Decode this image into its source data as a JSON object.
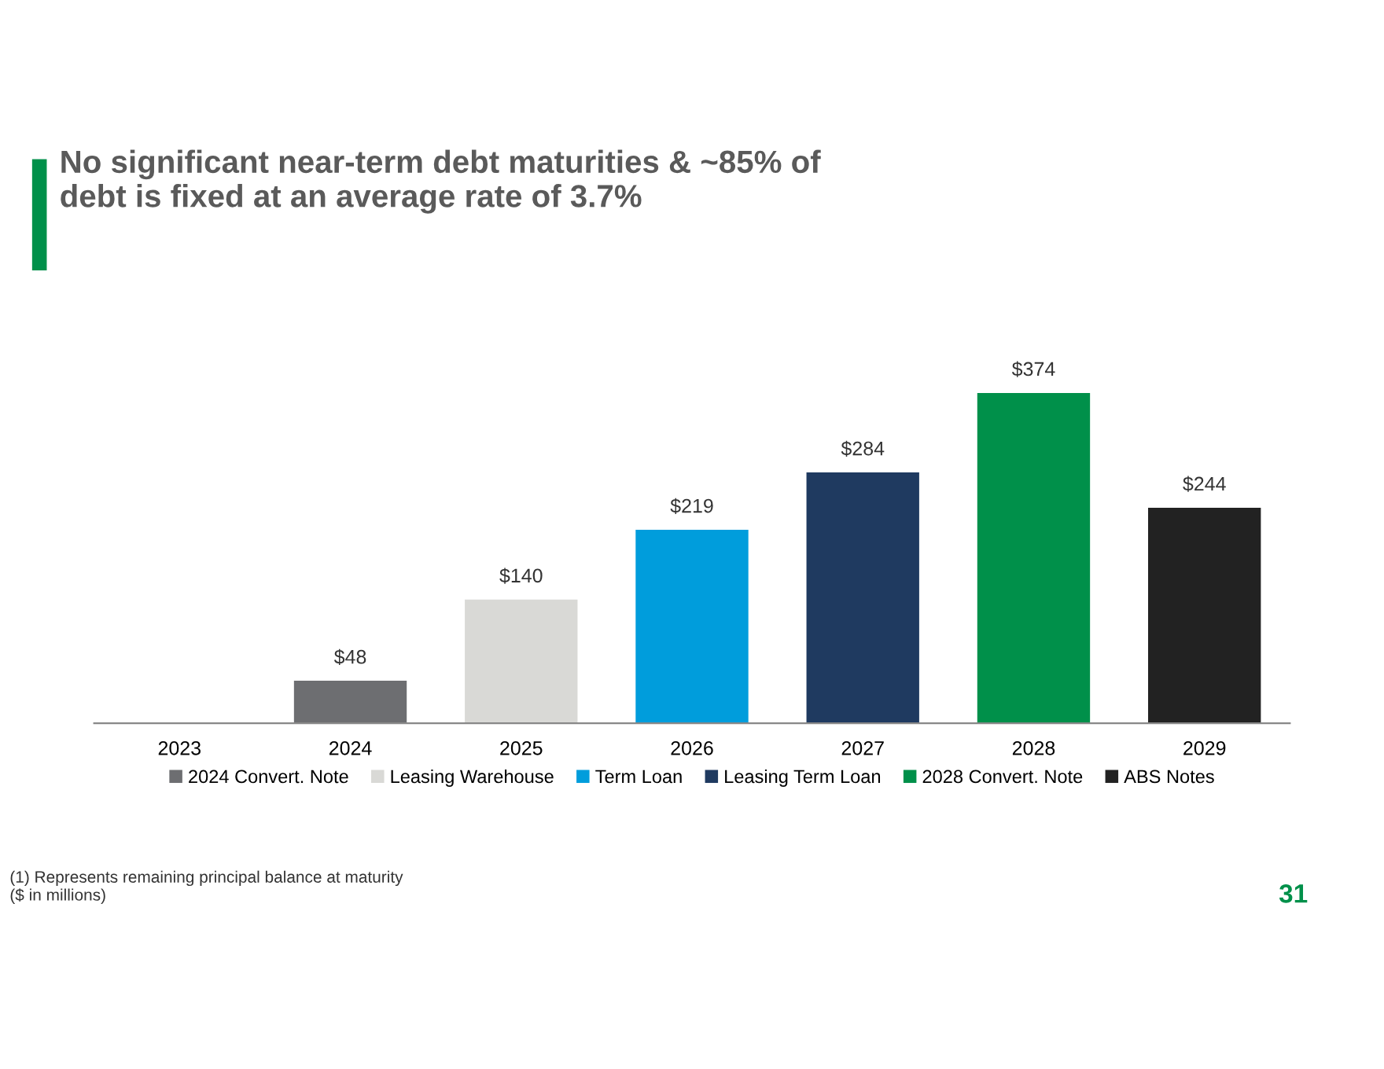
{
  "chart_data": {
    "type": "bar",
    "title": "No significant near-term debt maturities & ~85% of\ndebt is fixed at an average rate of 3.7%",
    "categories": [
      "2023",
      "2024",
      "2025",
      "2026",
      "2027",
      "2028",
      "2029"
    ],
    "legend": "bottom",
    "grid": false,
    "tick_labels": "x",
    "series": [
      {
        "name": "2024 Convert. Note",
        "color": "#6d6e71",
        "values": [
          null,
          48,
          null,
          null,
          null,
          null,
          null
        ],
        "value_labels": [
          null,
          "$48",
          null,
          null,
          null,
          null,
          null
        ]
      },
      {
        "name": "Leasing Warehouse",
        "color": "#d9d9d6",
        "values": [
          null,
          null,
          140,
          null,
          null,
          null,
          null
        ],
        "value_labels": [
          null,
          null,
          "$140",
          null,
          null,
          null,
          null
        ]
      },
      {
        "name": "Term Loan",
        "color": "#009ddc",
        "values": [
          null,
          null,
          null,
          219,
          null,
          null,
          null
        ],
        "value_labels": [
          null,
          null,
          null,
          "$219",
          null,
          null,
          null
        ]
      },
      {
        "name": "Leasing Term Loan",
        "color": "#1f3a60",
        "values": [
          null,
          null,
          null,
          null,
          284,
          null,
          null
        ],
        "value_labels": [
          null,
          null,
          null,
          null,
          "$284",
          null,
          null
        ]
      },
      {
        "name": "2028 Convert. Note",
        "color": "#00904a",
        "values": [
          null,
          null,
          null,
          null,
          null,
          374,
          null
        ],
        "value_labels": [
          null,
          null,
          null,
          null,
          null,
          "$374",
          null
        ]
      },
      {
        "name": "ABS Notes",
        "color": "#222222",
        "values": [
          null,
          null,
          null,
          null,
          null,
          null,
          244
        ],
        "value_labels": [
          null,
          null,
          null,
          null,
          null,
          null,
          "$244"
        ]
      }
    ],
    "annotations": [
      "(1) Represents remaining principal balance at maturity\n($ in millions)",
      "31"
    ]
  }
}
